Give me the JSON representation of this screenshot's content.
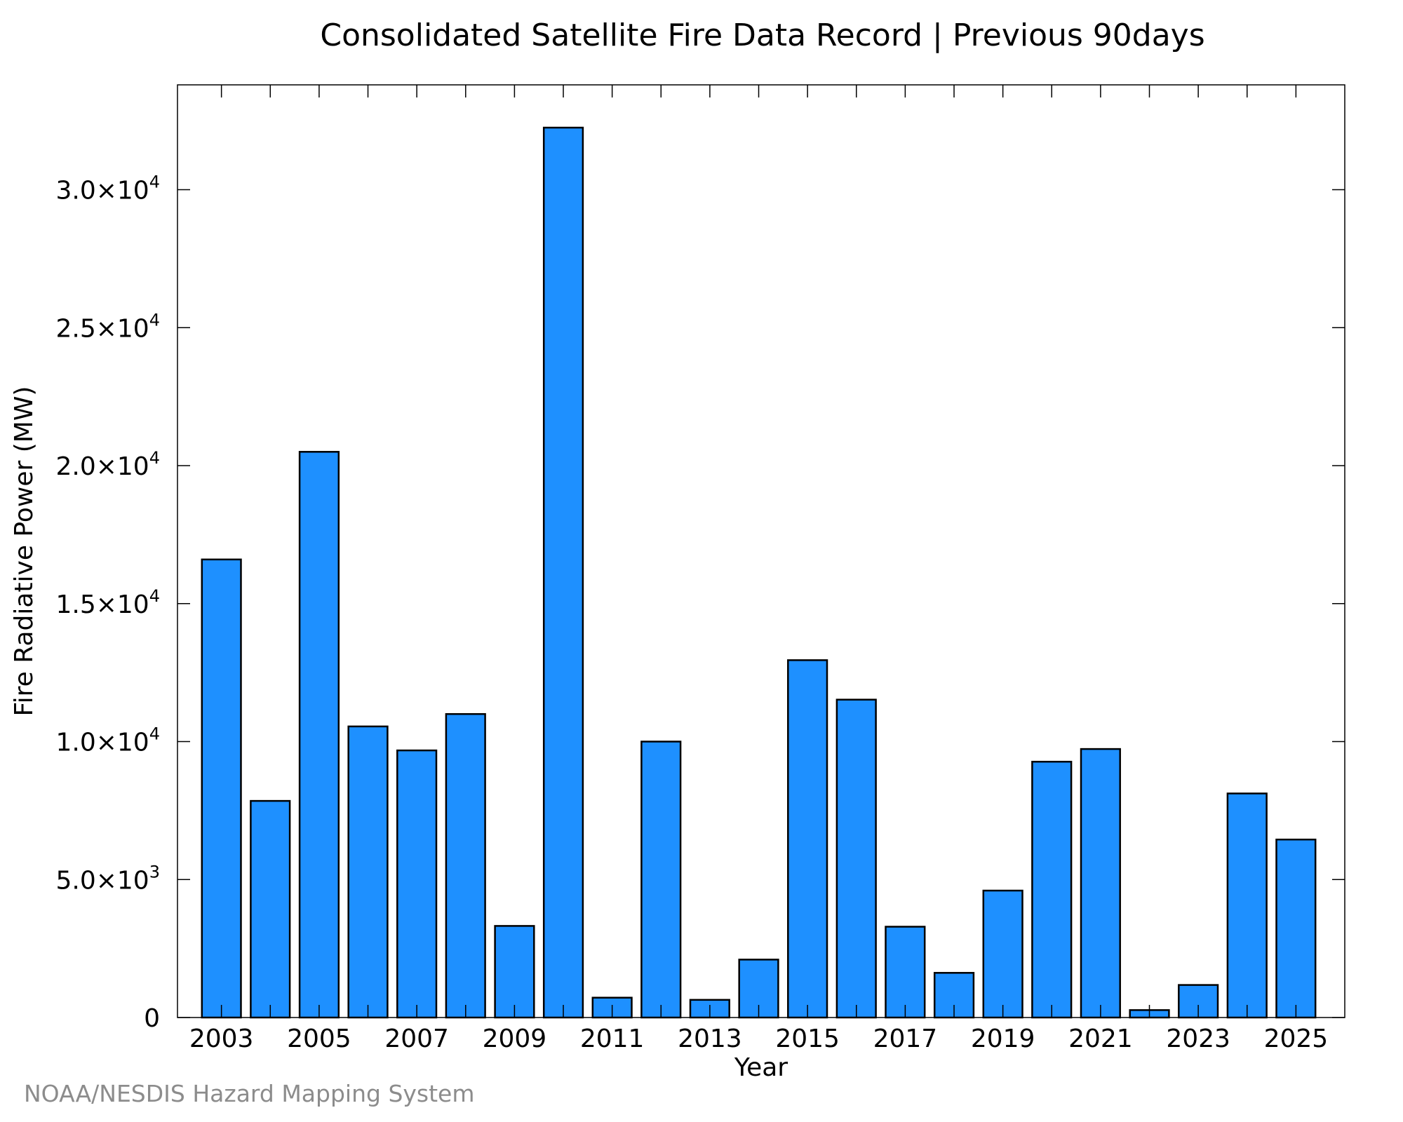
{
  "chart_data": {
    "type": "bar",
    "title": "Consolidated Satellite Fire Data Record | Previous 90days",
    "xlabel": "Year",
    "ylabel": "Fire Radiative Power (MW)",
    "categories": [
      "2003",
      "2004",
      "2005",
      "2006",
      "2007",
      "2008",
      "2009",
      "2010",
      "2011",
      "2012",
      "2013",
      "2014",
      "2015",
      "2016",
      "2017",
      "2018",
      "2019",
      "2020",
      "2021",
      "2022",
      "2023",
      "2024",
      "2025"
    ],
    "values": [
      16600,
      7850,
      20500,
      10550,
      9680,
      11000,
      3320,
      32250,
      720,
      10000,
      640,
      2100,
      12950,
      11520,
      3290,
      1620,
      4600,
      9270,
      9730,
      270,
      1180,
      8120,
      6450
    ],
    "xtick_labels": [
      "2003",
      "2005",
      "2007",
      "2009",
      "2011",
      "2013",
      "2015",
      "2017",
      "2019",
      "2021",
      "2023",
      "2025"
    ],
    "ytick_values": [
      0,
      5000,
      10000,
      15000,
      20000,
      25000,
      30000
    ],
    "ytick_mantissas": [
      "0",
      "5.0×10",
      "1.0×10",
      "1.5×10",
      "2.0×10",
      "2.5×10",
      "3.0×10"
    ],
    "ytick_exponents": [
      "",
      "3",
      "4",
      "4",
      "4",
      "4",
      "4"
    ],
    "ylim": [
      0,
      33800
    ],
    "xlim": [
      2002.1,
      2026.0
    ],
    "grid": false,
    "legend": "none",
    "bar_color": "#1e90ff",
    "edge_color": "#000000"
  },
  "credit": "NOAA/NESDIS Hazard Mapping System"
}
